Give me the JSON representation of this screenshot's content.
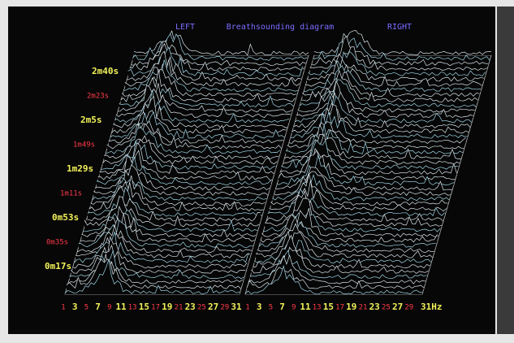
{
  "header": {
    "left": "LEFT",
    "title": "Breathsounding diagram",
    "right": "RIGHT"
  },
  "time_labels": [
    "2m40s",
    "2m23s",
    "2m5s",
    "1m49s",
    "1m29s",
    "1m11s",
    "0m53s",
    "0m35s",
    "0m17s"
  ],
  "left_freq_labels": [
    "1",
    "3",
    "5",
    "7",
    "9",
    "11",
    "13",
    "15",
    "17",
    "19",
    "21",
    "23",
    "25",
    "27",
    "29",
    "31"
  ],
  "right_freq_labels": [
    "1",
    "3",
    "5",
    "7",
    "9",
    "11",
    "13",
    "15",
    "17",
    "19",
    "21",
    "23",
    "25",
    "27",
    "29",
    "31Hz"
  ]
}
